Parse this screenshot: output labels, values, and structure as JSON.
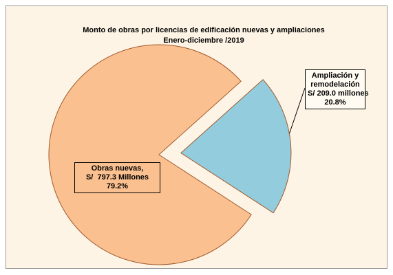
{
  "chart_data": {
    "type": "pie",
    "title": "Monto de obras por licencias de edificación nuevas y ampliaciones",
    "subtitle": "Enero-diciembre /2019",
    "categories": [
      "Obras nuevas,",
      "Ampliación y remodelación"
    ],
    "amount_labels": [
      "S/  797.3 Millones",
      "S/ 209.0 millones"
    ],
    "values": [
      79.2,
      20.8
    ],
    "value_labels": [
      "79.2%",
      "20.8%"
    ],
    "colors": [
      "#fac090",
      "#93cddd"
    ],
    "exploded": [
      false,
      true
    ]
  }
}
